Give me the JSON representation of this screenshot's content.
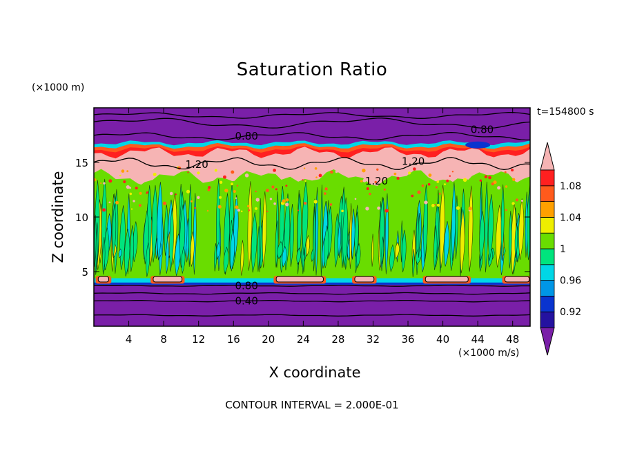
{
  "chart_data": {
    "type": "heatmap",
    "title": "Saturation Ratio",
    "xlabel": "X coordinate",
    "ylabel": "Z coordinate",
    "x_unit_label": "(×1000 m/s)",
    "y_unit_label": "(×1000 m)",
    "time_label": "t=154800 s",
    "footer": "CONTOUR INTERVAL = 2.000E-01",
    "xlim": [
      0,
      50
    ],
    "ylim": [
      0,
      20
    ],
    "x_ticks": [
      4,
      8,
      12,
      16,
      20,
      24,
      28,
      32,
      36,
      40,
      44,
      48
    ],
    "y_ticks": [
      5,
      10,
      15
    ],
    "contour_labels": [
      {
        "text": "0.80",
        "x": 17.5,
        "z": 17.4
      },
      {
        "text": "0.80",
        "x": 44.5,
        "z": 18.0
      },
      {
        "text": "1.20",
        "x": 11.8,
        "z": 14.8
      },
      {
        "text": "1.20",
        "x": 36.6,
        "z": 15.1
      },
      {
        "text": "1.20",
        "x": 32.4,
        "z": 13.3
      },
      {
        "text": "0.80",
        "x": 17.5,
        "z": 3.7
      },
      {
        "text": "0.40",
        "x": 17.5,
        "z": 2.3
      }
    ],
    "colorbar": {
      "labels": [
        "1.08",
        "1.04",
        "1",
        "0.96",
        "0.92"
      ],
      "label_values": [
        1.08,
        1.04,
        1.0,
        0.96,
        0.92
      ],
      "levels": [
        0.9,
        0.92,
        0.94,
        0.96,
        0.98,
        1.0,
        1.02,
        1.04,
        1.06,
        1.08,
        1.1
      ],
      "colors": [
        "#7a1fa8",
        "#2412a0",
        "#0a34cf",
        "#0096e6",
        "#00d7e6",
        "#00e47d",
        "#69dd00",
        "#eeee00",
        "#ffa000",
        "#ff5a1c",
        "#ff2020",
        "#f6b4b4"
      ]
    },
    "bands": [
      {
        "z_min": 0.0,
        "z_max": 3.8,
        "value": "<0.90"
      },
      {
        "z_min": 3.8,
        "z_max": 4.2,
        "value": "0.94-0.98"
      },
      {
        "z_min": 4.2,
        "z_max": 14.0,
        "value": "0.98-1.02"
      },
      {
        "z_min": 14.0,
        "z_max": 16.2,
        "value": ">1.10"
      },
      {
        "z_min": 16.2,
        "z_max": 16.7,
        "value": "1.02-1.10"
      },
      {
        "z_min": 16.7,
        "z_max": 20.0,
        "value": "<0.90"
      }
    ]
  }
}
